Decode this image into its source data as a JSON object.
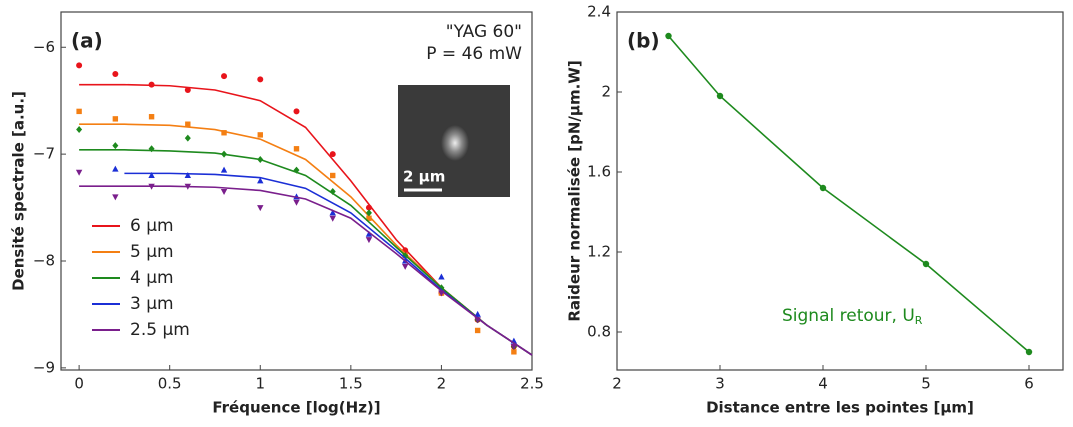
{
  "chart_data": [
    {
      "type": "scatter-fit",
      "panel_label": "(a)",
      "annotation": [
        "\"YAG 60\"",
        "P = 46 mW"
      ],
      "inset_label": "2 µm",
      "x_label": "Fréquence [log(Hz)]",
      "y_label": "Densité spectrale [a.u.]",
      "xlim": [
        -0.1,
        2.5
      ],
      "ylim": [
        -9.02,
        -5.67
      ],
      "xticks": [
        0,
        0.5,
        1,
        1.5,
        2,
        2.5
      ],
      "yticks": [
        {
          "value": -9,
          "label": "−9"
        },
        {
          "value": -8,
          "label": "−8"
        },
        {
          "value": -7,
          "label": "−7"
        },
        {
          "value": -6,
          "label": "−6"
        }
      ],
      "x": [
        0,
        0.2,
        0.4,
        0.6,
        0.8,
        1,
        1.2,
        1.4,
        1.6,
        1.8,
        2,
        2.2,
        2.4
      ],
      "fit_x": [
        0,
        0.25,
        0.5,
        0.75,
        1,
        1.25,
        1.5,
        1.75,
        2,
        2.25,
        2.5
      ],
      "series": [
        {
          "name": "6 µm",
          "color": "#e8141b",
          "marker": "circle",
          "values": [
            -6.17,
            -6.25,
            -6.35,
            -6.4,
            -6.27,
            -6.3,
            -6.6,
            -7.0,
            -7.5,
            -7.9,
            -8.3,
            -8.55,
            -8.8
          ],
          "fit": [
            -6.35,
            -6.35,
            -6.36,
            -6.4,
            -6.5,
            -6.75,
            -7.25,
            -7.8,
            -8.25,
            -8.6,
            -8.88
          ]
        },
        {
          "name": "5 µm",
          "color": "#f47f13",
          "marker": "square",
          "values": [
            -6.6,
            -6.67,
            -6.65,
            -6.72,
            -6.8,
            -6.82,
            -6.95,
            -7.2,
            -7.6,
            -7.95,
            -8.3,
            -8.65,
            -8.85
          ],
          "fit": [
            -6.72,
            -6.72,
            -6.73,
            -6.77,
            -6.86,
            -7.05,
            -7.4,
            -7.85,
            -8.25,
            -8.6,
            -8.88
          ]
        },
        {
          "name": "4 µm",
          "color": "#1e8a1e",
          "marker": "diamond",
          "values": [
            -6.77,
            -6.92,
            -6.95,
            -6.85,
            -7.0,
            -7.05,
            -7.15,
            -7.35,
            -7.55,
            -7.95,
            -8.25,
            -8.55,
            -8.8
          ],
          "fit": [
            -6.96,
            -6.96,
            -6.97,
            -6.99,
            -7.05,
            -7.2,
            -7.48,
            -7.87,
            -8.25,
            -8.6,
            -8.88
          ]
        },
        {
          "name": "3 µm",
          "color": "#1b2fd6",
          "marker": "triangle-up",
          "values": [
            null,
            -7.14,
            -7.2,
            -7.2,
            -7.15,
            -7.25,
            -7.4,
            -7.55,
            -7.75,
            -8.0,
            -8.15,
            -8.5,
            -8.75
          ],
          "fit": [
            null,
            -7.18,
            -7.18,
            -7.19,
            -7.22,
            -7.32,
            -7.55,
            -7.9,
            -8.27,
            -8.6,
            -8.88
          ]
        },
        {
          "name": "2.5 µm",
          "color": "#7a1f8c",
          "marker": "triangle-down",
          "values": [
            -7.17,
            -7.4,
            -7.3,
            -7.3,
            -7.35,
            -7.5,
            -7.45,
            -7.6,
            -7.8,
            -8.05,
            -8.3,
            -8.55,
            -8.8
          ],
          "fit": [
            -7.3,
            -7.3,
            -7.3,
            -7.31,
            -7.34,
            -7.42,
            -7.6,
            -7.93,
            -8.28,
            -8.6,
            -8.88
          ]
        }
      ]
    },
    {
      "type": "line",
      "panel_label": "(b)",
      "annotation": {
        "text": "Signal retour, U",
        "subscript": "R"
      },
      "x_label": "Distance entre les pointes [µm]",
      "y_label": "Raideur normalisée [pN/µm.W]",
      "xlim": [
        2,
        6.33
      ],
      "ylim": [
        0.61,
        2.4
      ],
      "xticks": [
        2,
        3,
        4,
        5,
        6
      ],
      "yticks": [
        0.8,
        1.2,
        1.6,
        2,
        2.4
      ],
      "x": [
        2.5,
        3,
        4,
        5,
        6
      ],
      "values": [
        2.28,
        1.98,
        1.52,
        1.14,
        0.7
      ],
      "color": "#1e8a1e"
    }
  ]
}
